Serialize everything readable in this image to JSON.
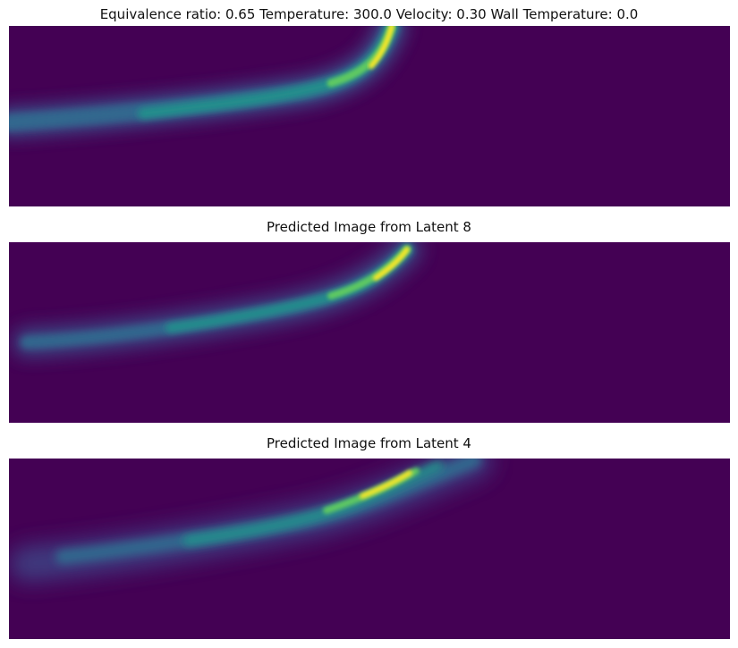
{
  "figure": {
    "colormap": "viridis",
    "background_color": "#440154",
    "panels": [
      {
        "title": "Equivalence ratio: 0.65 Temperature: 300.0 Velocity: 0.30 Wall Temperature: 0.0",
        "kind": "ground-truth"
      },
      {
        "title": "Predicted Image from Latent 8",
        "kind": "prediction"
      },
      {
        "title": "Predicted Image from Latent 4",
        "kind": "prediction"
      }
    ]
  }
}
